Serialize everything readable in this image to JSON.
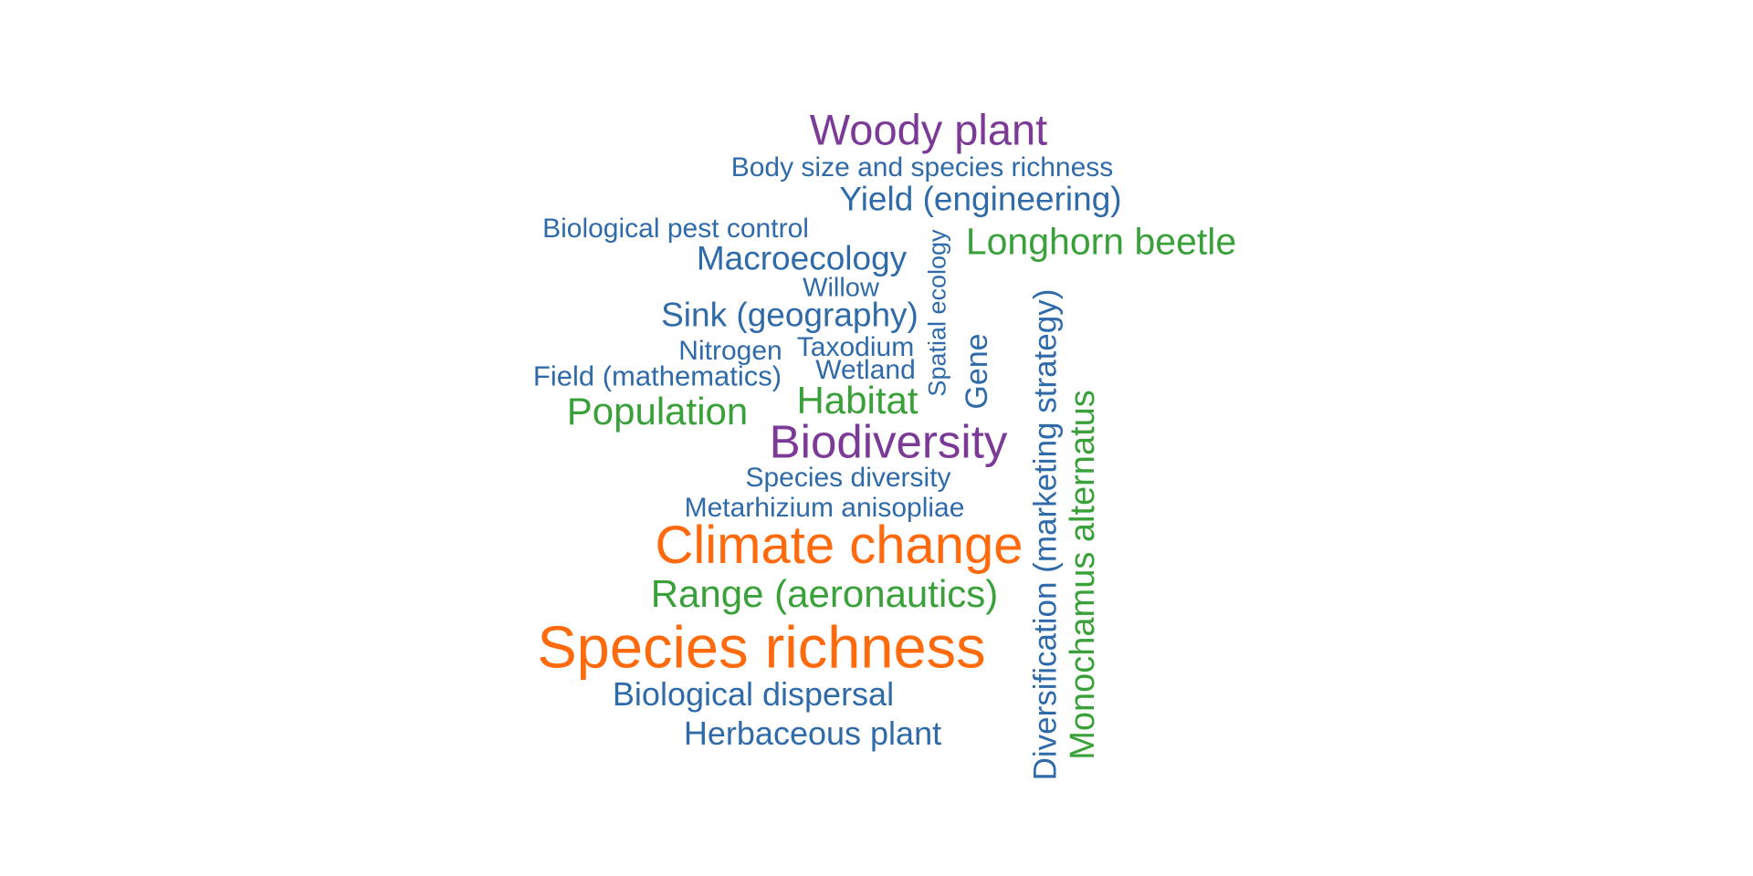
{
  "colors": {
    "blue": "#2f6aa9",
    "green": "#3aa13a",
    "purple": "#7b3a96",
    "orange": "#ff6a0d"
  },
  "words": {
    "woody_plant": {
      "text": "Woody plant",
      "color": "purple"
    },
    "body_size": {
      "text": "Body size and species richness",
      "color": "blue"
    },
    "yield": {
      "text": "Yield (engineering)",
      "color": "blue"
    },
    "bio_pest_control": {
      "text": "Biological pest control",
      "color": "blue"
    },
    "longhorn_beetle": {
      "text": "Longhorn beetle",
      "color": "green"
    },
    "macroecology": {
      "text": "Macroecology",
      "color": "blue"
    },
    "willow": {
      "text": "Willow",
      "color": "blue"
    },
    "sink": {
      "text": "Sink (geography)",
      "color": "blue"
    },
    "spatial_ecology": {
      "text": "Spatial ecology",
      "color": "blue"
    },
    "gene": {
      "text": "Gene",
      "color": "blue"
    },
    "nitrogen": {
      "text": "Nitrogen",
      "color": "blue"
    },
    "taxodium": {
      "text": "Taxodium",
      "color": "blue"
    },
    "wetland": {
      "text": "Wetland",
      "color": "blue"
    },
    "field_math": {
      "text": "Field (mathematics)",
      "color": "blue"
    },
    "population": {
      "text": "Population",
      "color": "green"
    },
    "habitat": {
      "text": "Habitat",
      "color": "green"
    },
    "biodiversity": {
      "text": "Biodiversity",
      "color": "purple"
    },
    "diversification": {
      "text": "Diversification (marketing strategy)",
      "color": "blue"
    },
    "monochamus": {
      "text": "Monochamus alternatus",
      "color": "green"
    },
    "species_diversity": {
      "text": "Species diversity",
      "color": "blue"
    },
    "metarhizium": {
      "text": "Metarhizium anisopliae",
      "color": "blue"
    },
    "climate_change": {
      "text": "Climate change",
      "color": "orange"
    },
    "range": {
      "text": "Range (aeronautics)",
      "color": "green"
    },
    "species_richness": {
      "text": "Species richness",
      "color": "orange"
    },
    "bio_dispersal": {
      "text": "Biological dispersal",
      "color": "blue"
    },
    "herbaceous": {
      "text": "Herbaceous plant",
      "color": "blue"
    }
  }
}
